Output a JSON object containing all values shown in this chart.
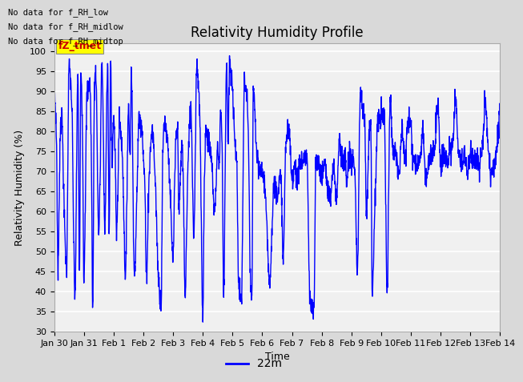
{
  "title": "Relativity Humidity Profile",
  "ylabel": "Relativity Humidity (%)",
  "xlabel": "Time",
  "ylim": [
    30,
    102
  ],
  "yticks": [
    30,
    35,
    40,
    45,
    50,
    55,
    60,
    65,
    70,
    75,
    80,
    85,
    90,
    95,
    100
  ],
  "line_color": "blue",
  "line_width": 1.0,
  "legend_label": "22m",
  "legend_color": "blue",
  "fig_bg_color": "#d9d9d9",
  "plot_bg_color": "#f0f0f0",
  "grid_color": "#ffffff",
  "annotations": [
    "No data for f_RH_low",
    "No data for f_RH_midlow",
    "No data for f_RH_midtop"
  ],
  "watermark_text": "fZ_tmet",
  "watermark_color": "#cc0000",
  "watermark_bg": "#ffff00",
  "xtick_labels": [
    "Jan 30",
    "Jan 31",
    "Feb 1",
    "Feb 2",
    "Feb 3",
    "Feb 4",
    "Feb 5",
    "Feb 6",
    "Feb 7",
    "Feb 8",
    "Feb 9",
    "Feb 10",
    "Feb 11",
    "Feb 12",
    "Feb 13",
    "Feb 14"
  ],
  "xtick_positions": [
    0,
    1,
    2,
    3,
    4,
    5,
    6,
    7,
    8,
    9,
    10,
    11,
    12,
    13,
    14,
    15
  ],
  "title_fontsize": 12,
  "axis_fontsize": 9,
  "tick_fontsize": 8,
  "subplots_adjust": [
    0.11,
    0.13,
    0.98,
    0.88
  ]
}
